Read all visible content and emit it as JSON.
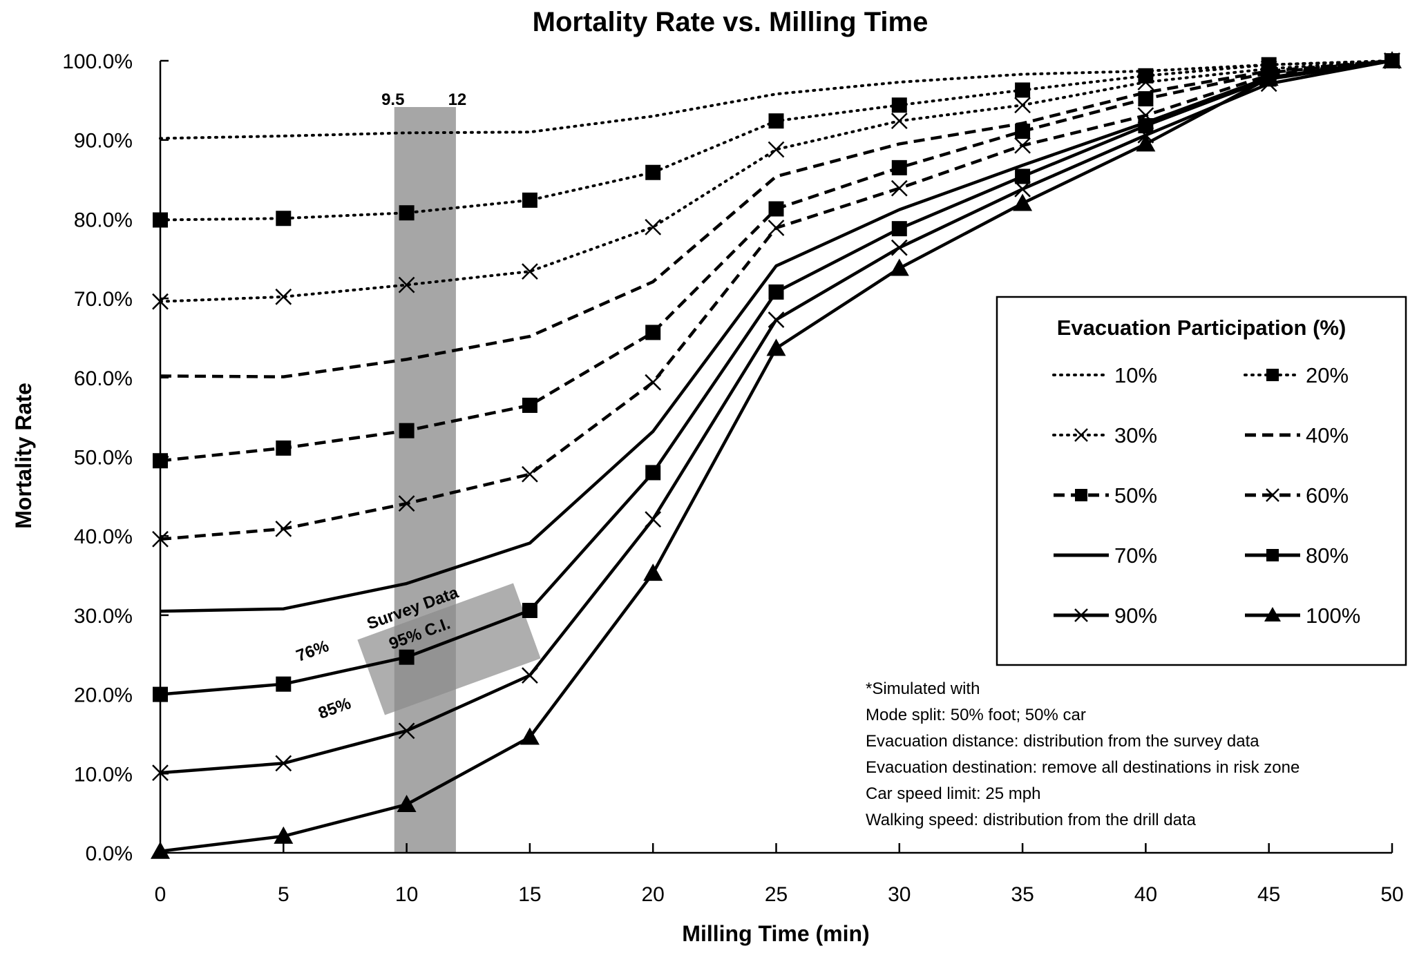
{
  "chart_data": {
    "type": "line",
    "title": "Mortality Rate vs. Milling Time",
    "xlabel": "Milling Time (min)",
    "ylabel": "Mortality Rate",
    "xlim": [
      0,
      50
    ],
    "ylim": [
      0,
      100
    ],
    "x": [
      0,
      5,
      10,
      15,
      20,
      25,
      30,
      35,
      40,
      45,
      50
    ],
    "x_tick_labels": [
      "0",
      "5",
      "10",
      "15",
      "20",
      "25",
      "30",
      "35",
      "40",
      "45",
      "50"
    ],
    "y_tick_labels": [
      "0.0%",
      "10.0%",
      "20.0%",
      "30.0%",
      "40.0%",
      "50.0%",
      "60.0%",
      "70.0%",
      "80.0%",
      "90.0%",
      "100.0%"
    ],
    "y_ticks": [
      0,
      10,
      20,
      30,
      40,
      50,
      60,
      70,
      80,
      90,
      100
    ],
    "grid": false,
    "legend": {
      "title": "Evacuation Participation (%)",
      "placement": "right",
      "columns": 2
    },
    "series": [
      {
        "name": "10%",
        "line": "dotted",
        "marker": "none",
        "values": [
          90.2,
          90.5,
          90.9,
          91.0,
          93.0,
          95.8,
          97.3,
          98.3,
          98.7,
          99.5,
          100
        ]
      },
      {
        "name": "20%",
        "line": "dotted",
        "marker": "square",
        "values": [
          79.9,
          80.1,
          80.8,
          82.4,
          85.9,
          92.4,
          94.4,
          96.3,
          98.1,
          99.5,
          100
        ]
      },
      {
        "name": "30%",
        "line": "dotted",
        "marker": "x",
        "values": [
          69.6,
          70.2,
          71.7,
          73.4,
          79.0,
          88.8,
          92.4,
          94.4,
          97.3,
          99.0,
          100
        ]
      },
      {
        "name": "40%",
        "line": "dashed",
        "marker": "none",
        "values": [
          60.2,
          60.1,
          62.3,
          65.2,
          72.1,
          85.4,
          89.5,
          92.1,
          96.0,
          98.7,
          100
        ]
      },
      {
        "name": "50%",
        "line": "dashed",
        "marker": "square",
        "values": [
          49.5,
          51.1,
          53.3,
          56.5,
          65.7,
          81.3,
          86.5,
          91.1,
          95.2,
          98.5,
          100
        ]
      },
      {
        "name": "60%",
        "line": "dashed",
        "marker": "x",
        "values": [
          39.6,
          40.9,
          44.1,
          47.8,
          59.4,
          78.9,
          83.9,
          89.3,
          93.1,
          98.2,
          100
        ]
      },
      {
        "name": "70%",
        "line": "solid",
        "marker": "none",
        "values": [
          30.5,
          30.8,
          34.0,
          39.1,
          53.2,
          74.1,
          81.2,
          86.8,
          92.2,
          97.9,
          100
        ]
      },
      {
        "name": "80%",
        "line": "solid",
        "marker": "square",
        "values": [
          20.0,
          21.3,
          24.7,
          30.6,
          48.0,
          70.8,
          78.8,
          85.4,
          91.8,
          97.7,
          100
        ]
      },
      {
        "name": "90%",
        "line": "solid",
        "marker": "x",
        "values": [
          10.1,
          11.3,
          15.4,
          22.4,
          42.1,
          67.3,
          76.4,
          83.8,
          90.6,
          97.1,
          100
        ]
      },
      {
        "name": "100%",
        "line": "solid",
        "marker": "triangle",
        "values": [
          0.2,
          2.1,
          6.1,
          14.6,
          35.3,
          63.7,
          73.8,
          82.0,
          89.5,
          97.8,
          100
        ]
      }
    ],
    "annotations": {
      "milling_band": {
        "x_from": 9.5,
        "x_to": 12,
        "label_from": "9.5",
        "label_to": "12",
        "color": "#a6a6a6"
      },
      "survey_ci": {
        "label_line1": "Survey Data",
        "label_line2": "95% C.I.",
        "upper_label": "76%",
        "lower_label": "85%",
        "color": "#8c8c8c"
      },
      "notes": [
        "*Simulated with",
        "Mode split: 50% foot; 50% car",
        "Evacuation distance: distribution from the survey data",
        "Evacuation destination: remove all destinations in risk zone",
        "Car speed limit: 25 mph",
        "Walking speed: distribution from the drill data"
      ]
    }
  }
}
